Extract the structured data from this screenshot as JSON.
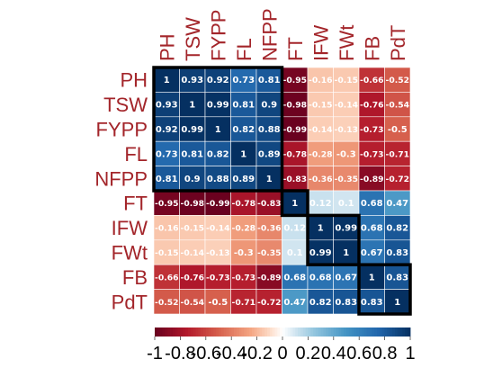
{
  "chart_data": {
    "type": "heatmap",
    "title": "",
    "variables": [
      "PH",
      "TSW",
      "FYPP",
      "FL",
      "NFPP",
      "FT",
      "IFW",
      "FWt",
      "FB",
      "PdT"
    ],
    "matrix": [
      [
        1,
        0.93,
        0.92,
        0.73,
        0.81,
        -0.95,
        -0.16,
        -0.15,
        -0.66,
        -0.52
      ],
      [
        0.93,
        1,
        0.99,
        0.81,
        0.9,
        -0.98,
        -0.15,
        -0.14,
        -0.76,
        -0.54
      ],
      [
        0.92,
        0.99,
        1,
        0.82,
        0.88,
        -0.99,
        -0.14,
        -0.13,
        -0.73,
        -0.5
      ],
      [
        0.73,
        0.81,
        0.82,
        1,
        0.89,
        -0.78,
        -0.28,
        -0.3,
        -0.73,
        -0.71
      ],
      [
        0.81,
        0.9,
        0.88,
        0.89,
        1,
        -0.83,
        -0.36,
        -0.35,
        -0.89,
        -0.72
      ],
      [
        -0.95,
        -0.98,
        -0.99,
        -0.78,
        -0.83,
        1,
        0.12,
        0.1,
        0.68,
        0.47
      ],
      [
        -0.16,
        -0.15,
        -0.14,
        -0.28,
        -0.36,
        0.12,
        1,
        0.99,
        0.68,
        0.82
      ],
      [
        -0.15,
        -0.14,
        -0.13,
        -0.3,
        -0.35,
        0.1,
        0.99,
        1,
        0.67,
        0.83
      ],
      [
        -0.66,
        -0.76,
        -0.73,
        -0.73,
        -0.89,
        0.68,
        0.68,
        0.67,
        1,
        0.83
      ],
      [
        -0.52,
        -0.54,
        -0.5,
        -0.71,
        -0.72,
        0.47,
        0.82,
        0.83,
        0.83,
        1
      ]
    ],
    "clusters": [
      {
        "start": 0,
        "end": 4
      },
      {
        "start": 5,
        "end": 5
      },
      {
        "start": 6,
        "end": 7
      },
      {
        "start": 8,
        "end": 9
      }
    ],
    "colorbar": {
      "range": [
        -1,
        1
      ],
      "ticks": [
        "-1",
        "-0.8",
        "-0.6",
        "-0.4",
        "-0.2",
        "0",
        "0.2",
        "0.4",
        "0.6",
        "0.8",
        "1"
      ]
    },
    "colors": {
      "negative": "#67001f",
      "neutral": "#ffffff",
      "positive": "#053061",
      "label": "#a3252a",
      "cluster_border": "#000000"
    }
  }
}
